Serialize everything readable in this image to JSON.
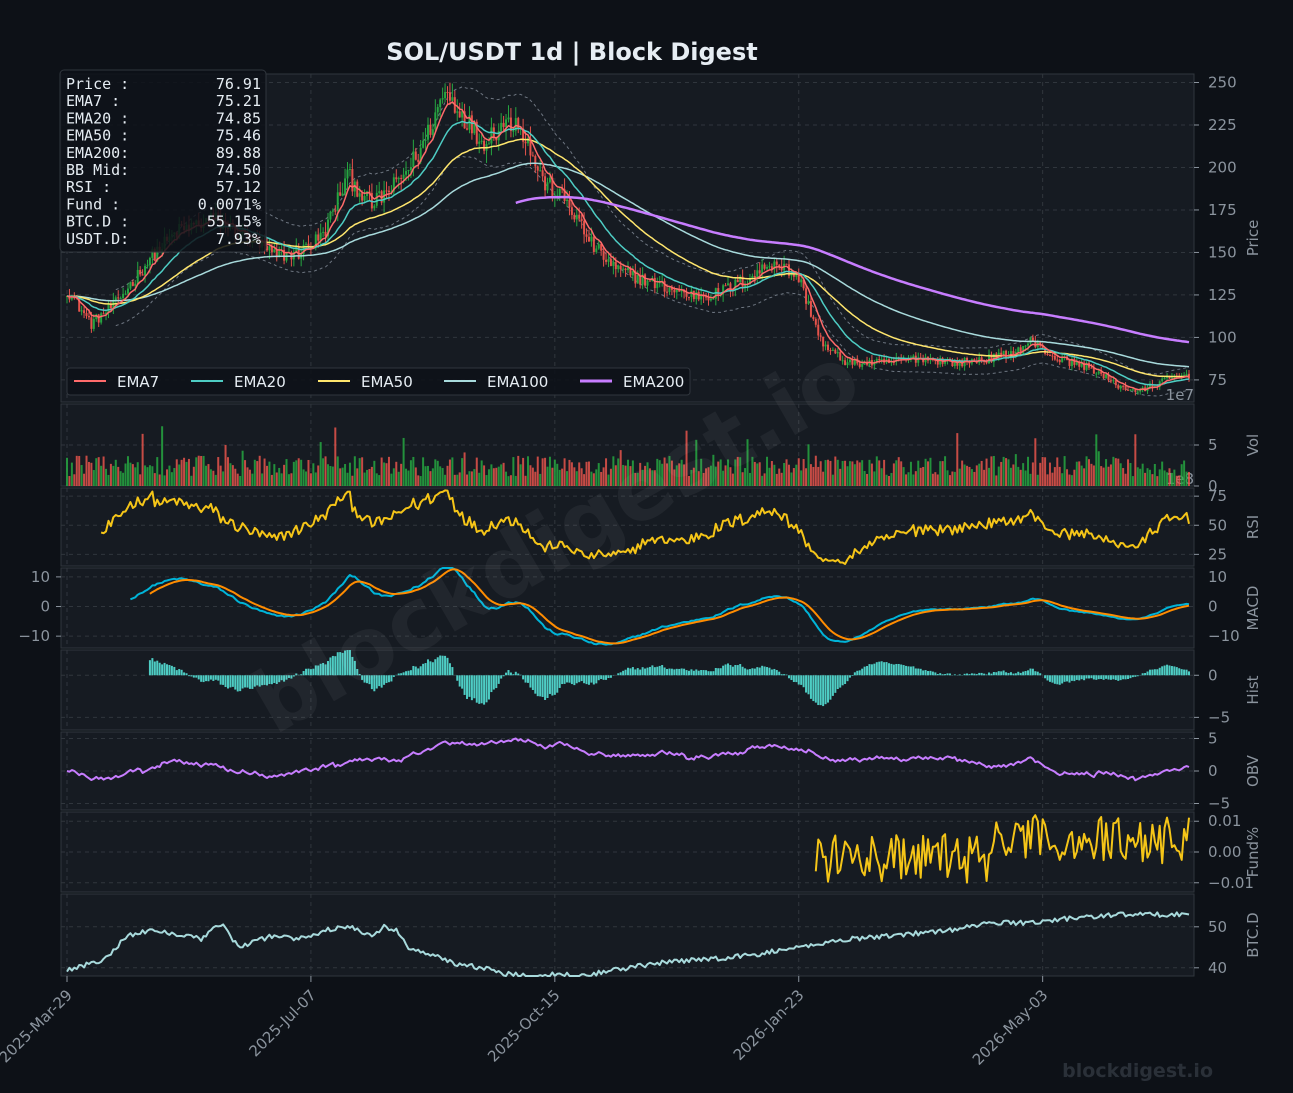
{
  "title": "SOL/USDT  1d  |  Block Digest",
  "watermark_center": "blockdigest.io",
  "watermark_corner": "blockdigest.io",
  "colors": {
    "background": "#0d1117",
    "panel": "#161b22",
    "grid": "#30363d",
    "text": "#8b949e",
    "title": "#e6edf3",
    "up": "#26a641",
    "down": "#e5534b",
    "ema7": "#ff6b6b",
    "ema20": "#4ecdc4",
    "ema50": "#ffe66d",
    "ema100": "#a8dadc",
    "ema200": "#c77dff",
    "rsi": "#f5c518",
    "macd": "#00b4d8",
    "signal": "#ff8c00",
    "hist": "#4ecdc4",
    "obv": "#c77dff",
    "fund": "#f5c518",
    "btcd": "#a8dadc"
  },
  "info_box": [
    {
      "label": "Price :",
      "value": "76.91"
    },
    {
      "label": "EMA7  :",
      "value": "75.21"
    },
    {
      "label": "EMA20 :",
      "value": "74.85"
    },
    {
      "label": "EMA50 :",
      "value": "75.46"
    },
    {
      "label": "EMA200:",
      "value": "89.88"
    },
    {
      "label": "BB Mid:",
      "value": "74.50"
    },
    {
      "label": "RSI   :",
      "value": "57.12"
    },
    {
      "label": "Fund  :",
      "value": "0.0071%"
    },
    {
      "label": "BTC.D :",
      "value": "55.15%"
    },
    {
      "label": "USDT.D:",
      "value": "7.93%"
    }
  ],
  "chart_data": {
    "type": "line",
    "x_ticks": [
      "2025-Mar-29",
      "2025-Jul-07",
      "2025-Oct-15",
      "2026-Jan-23",
      "2026-May-03"
    ],
    "days": 461,
    "legend": [
      "EMA7",
      "EMA20",
      "EMA50",
      "EMA100",
      "EMA200"
    ],
    "panels": [
      {
        "key": "price",
        "ylabel": "Price",
        "ylim": [
          62,
          255
        ],
        "ticks": [
          75,
          100,
          125,
          150,
          175,
          200,
          225,
          250
        ],
        "offset_label": "1e7",
        "price_anchors": [
          [
            0,
            128
          ],
          [
            10,
            108
          ],
          [
            20,
            120
          ],
          [
            35,
            148
          ],
          [
            45,
            162
          ],
          [
            60,
            170
          ],
          [
            75,
            158
          ],
          [
            85,
            148
          ],
          [
            95,
            150
          ],
          [
            105,
            160
          ],
          [
            115,
            195
          ],
          [
            125,
            178
          ],
          [
            135,
            190
          ],
          [
            145,
            210
          ],
          [
            155,
            245
          ],
          [
            162,
            232
          ],
          [
            170,
            215
          ],
          [
            178,
            225
          ],
          [
            185,
            228
          ],
          [
            195,
            192
          ],
          [
            205,
            180
          ],
          [
            215,
            155
          ],
          [
            225,
            140
          ],
          [
            240,
            132
          ],
          [
            255,
            125
          ],
          [
            265,
            125
          ],
          [
            280,
            135
          ],
          [
            290,
            145
          ],
          [
            300,
            135
          ],
          [
            310,
            95
          ],
          [
            320,
            85
          ],
          [
            335,
            85
          ],
          [
            350,
            88
          ],
          [
            365,
            85
          ],
          [
            380,
            88
          ],
          [
            390,
            92
          ],
          [
            395,
            98
          ],
          [
            405,
            88
          ],
          [
            420,
            82
          ],
          [
            430,
            72
          ],
          [
            440,
            68
          ],
          [
            450,
            75
          ],
          [
            460,
            78
          ],
          [
            470,
            76
          ],
          [
            478,
            76
          ],
          [
            485,
            74
          ],
          [
            495,
            73
          ],
          [
            505,
            73
          ],
          [
            460,
            76
          ]
        ],
        "ema200_start": 184
      },
      {
        "key": "vol",
        "ylabel": "Vol",
        "ylim": [
          0,
          10
        ],
        "ticks": [
          0,
          5
        ],
        "offset_label": "1e8"
      },
      {
        "key": "rsi",
        "ylabel": "RSI",
        "ylim": [
          15,
          82
        ],
        "ticks": [
          25,
          50,
          75
        ]
      },
      {
        "key": "macd",
        "ylabel": "MACD",
        "ylim": [
          -14,
          13
        ],
        "ticks": [
          -10,
          0,
          10
        ],
        "left_ticks": true
      },
      {
        "key": "hist",
        "ylabel": "Hist",
        "ylim": [
          -6.5,
          3
        ],
        "ticks": [
          -5,
          0
        ]
      },
      {
        "key": "obv",
        "ylabel": "OBV",
        "ylim": [
          -6,
          6
        ],
        "ticks": [
          -5,
          0,
          5
        ]
      },
      {
        "key": "fund",
        "ylabel": "Fund%",
        "ylim": [
          -0.013,
          0.013
        ],
        "ticks": [
          -0.01,
          0.0,
          0.01
        ],
        "tick_labels": [
          "−0.01",
          "0.00",
          "0.01"
        ],
        "start_day": 307
      },
      {
        "key": "btcd",
        "ylabel": "BTC.D",
        "ylim": [
          38,
          58
        ],
        "ticks": [
          40,
          50
        ],
        "anchors": [
          [
            0,
            39.5
          ],
          [
            15,
            42
          ],
          [
            20,
            45
          ],
          [
            25,
            48
          ],
          [
            35,
            49
          ],
          [
            50,
            48
          ],
          [
            55,
            47
          ],
          [
            60,
            50
          ],
          [
            65,
            50
          ],
          [
            70,
            45
          ],
          [
            75,
            46
          ],
          [
            85,
            48
          ],
          [
            95,
            47
          ],
          [
            105,
            49
          ],
          [
            115,
            50
          ],
          [
            125,
            48
          ],
          [
            130,
            50
          ],
          [
            135,
            49
          ],
          [
            140,
            45
          ],
          [
            150,
            43
          ],
          [
            160,
            41
          ],
          [
            170,
            40
          ],
          [
            180,
            38.5
          ],
          [
            190,
            38
          ],
          [
            200,
            38.5
          ],
          [
            210,
            38
          ],
          [
            220,
            39
          ],
          [
            240,
            41
          ],
          [
            260,
            42
          ],
          [
            280,
            43
          ],
          [
            290,
            44
          ],
          [
            300,
            45
          ],
          [
            310,
            46
          ],
          [
            320,
            47
          ],
          [
            340,
            48
          ],
          [
            360,
            49
          ],
          [
            380,
            51
          ],
          [
            395,
            51
          ],
          [
            410,
            52
          ],
          [
            430,
            53
          ],
          [
            450,
            53
          ],
          [
            470,
            53
          ],
          [
            490,
            53
          ]
        ]
      }
    ]
  }
}
